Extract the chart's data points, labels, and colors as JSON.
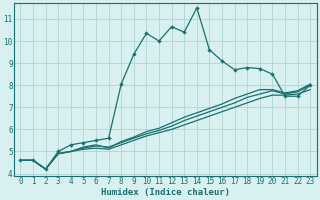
{
  "title": "",
  "xlabel": "Humidex (Indice chaleur)",
  "bg_color": "#d8f0f0",
  "grid_color": "#afd4d4",
  "line_color": "#1a7070",
  "xlim": [
    -0.5,
    23.5
  ],
  "ylim": [
    3.9,
    11.7
  ],
  "yticks": [
    4,
    5,
    6,
    7,
    8,
    9,
    10,
    11
  ],
  "xticks": [
    0,
    1,
    2,
    3,
    4,
    5,
    6,
    7,
    8,
    9,
    10,
    11,
    12,
    13,
    14,
    15,
    16,
    17,
    18,
    19,
    20,
    21,
    22,
    23
  ],
  "line1_x": [
    0,
    1,
    2,
    3,
    4,
    5,
    6,
    7,
    8,
    9,
    10,
    11,
    12,
    13,
    14,
    15,
    16,
    17,
    18,
    19,
    20,
    21,
    22,
    23
  ],
  "line1_y": [
    4.6,
    4.6,
    4.2,
    5.0,
    5.3,
    5.4,
    5.5,
    5.6,
    8.05,
    9.4,
    10.35,
    10.0,
    10.65,
    10.4,
    11.5,
    9.6,
    9.1,
    8.7,
    8.8,
    8.75,
    8.5,
    7.5,
    7.5,
    8.0
  ],
  "line2_x": [
    0,
    1,
    2,
    3,
    4,
    5,
    6,
    7,
    8,
    9,
    10,
    11,
    12,
    13,
    14,
    15,
    16,
    17,
    18,
    19,
    20,
    21,
    22,
    23
  ],
  "line2_y": [
    4.6,
    4.6,
    4.2,
    4.9,
    5.0,
    5.1,
    5.15,
    5.1,
    5.3,
    5.5,
    5.7,
    5.85,
    6.0,
    6.2,
    6.4,
    6.6,
    6.8,
    7.0,
    7.2,
    7.4,
    7.55,
    7.55,
    7.6,
    7.8
  ],
  "line3_x": [
    0,
    1,
    2,
    3,
    4,
    5,
    6,
    7,
    8,
    9,
    10,
    11,
    12,
    13,
    14,
    15,
    16,
    17,
    18,
    19,
    20,
    21,
    22,
    23
  ],
  "line3_y": [
    4.6,
    4.6,
    4.2,
    4.9,
    5.0,
    5.15,
    5.25,
    5.2,
    5.4,
    5.6,
    5.8,
    5.95,
    6.15,
    6.4,
    6.6,
    6.8,
    7.0,
    7.2,
    7.45,
    7.6,
    7.75,
    7.6,
    7.7,
    8.0
  ],
  "line4_x": [
    0,
    1,
    2,
    3,
    4,
    5,
    6,
    7,
    8,
    9,
    10,
    11,
    12,
    13,
    14,
    15,
    16,
    17,
    18,
    19,
    20,
    21,
    22,
    23
  ],
  "line4_y": [
    4.6,
    4.6,
    4.2,
    4.9,
    5.0,
    5.2,
    5.3,
    5.15,
    5.45,
    5.65,
    5.9,
    6.05,
    6.3,
    6.55,
    6.75,
    6.95,
    7.15,
    7.4,
    7.6,
    7.8,
    7.8,
    7.65,
    7.75,
    8.05
  ]
}
